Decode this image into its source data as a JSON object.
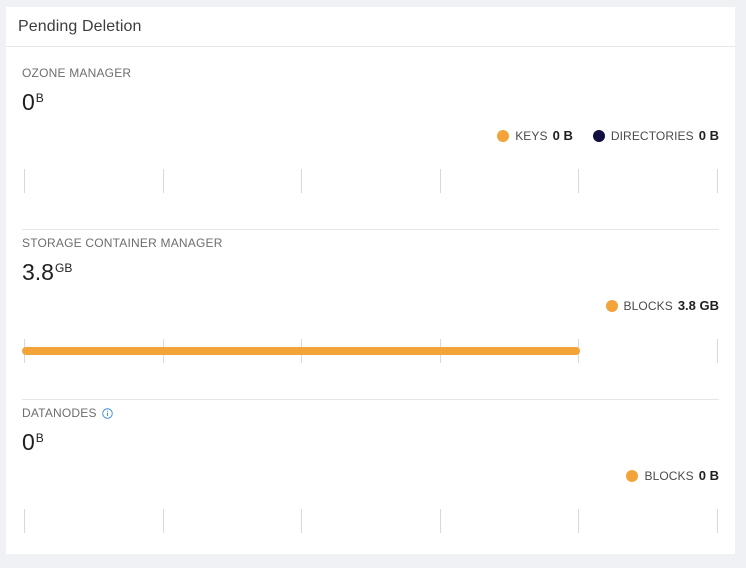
{
  "card": {
    "title": "Pending Deletion"
  },
  "colors": {
    "orange": "#f2a33a",
    "navy": "#130f40",
    "info_blue": "#3b8de2"
  },
  "sections": {
    "om": {
      "title": "OZONE MANAGER",
      "total_value": "0",
      "total_unit": "B",
      "legend": [
        {
          "label": "KEYS",
          "value": "0 B",
          "color": "#f2a33a"
        },
        {
          "label": "DIRECTORIES",
          "value": "0 B",
          "color": "#130f40"
        }
      ],
      "bar_fraction": 0
    },
    "scm": {
      "title": "STORAGE CONTAINER MANAGER",
      "total_value": "3.8",
      "total_unit": "GB",
      "legend": [
        {
          "label": "BLOCKS",
          "value": "3.8 GB",
          "color": "#f2a33a"
        }
      ],
      "bar_fraction": 0.8
    },
    "dn": {
      "title": "DATANODES",
      "info_icon": "info-circle-icon",
      "total_value": "0",
      "total_unit": "B",
      "legend": [
        {
          "label": "BLOCKS",
          "value": "0 B",
          "color": "#f2a33a"
        }
      ],
      "bar_fraction": 0
    }
  }
}
